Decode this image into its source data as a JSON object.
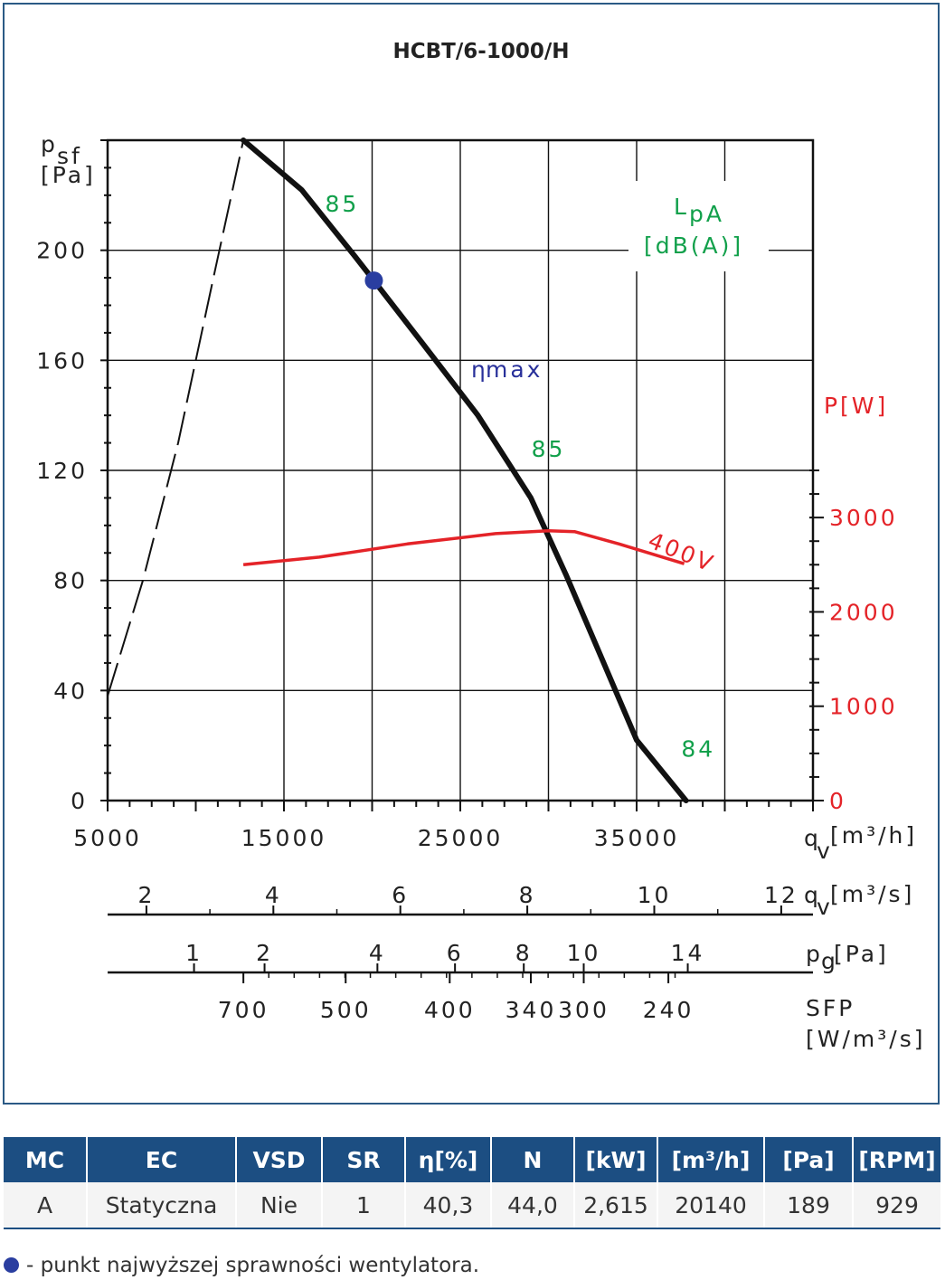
{
  "chart_data": {
    "type": "line",
    "title": "HCBT/6-1000/H",
    "y_axis": {
      "label_main": "p",
      "label_sub": "sf",
      "unit": "[Pa]",
      "range": [
        0,
        240
      ],
      "ticks": [
        "0",
        "40",
        "80",
        "120",
        "160",
        "200"
      ]
    },
    "x_axis": {
      "range": [
        5000,
        45000
      ],
      "unit_main": "q",
      "unit_sub": "v",
      "unit_bracket": "[m³/h]",
      "ticks": [
        "5000",
        "15000",
        "25000",
        "35000"
      ]
    },
    "secondary_axes": [
      {
        "name": "qv_m3s",
        "unit_main": "q",
        "unit_sub": "v",
        "unit_bracket": "[m³/s]",
        "ticks": [
          {
            "label": "2",
            "x": 7200
          },
          {
            "label": "4",
            "x": 14400
          },
          {
            "label": "6",
            "x": 21600
          },
          {
            "label": "8",
            "x": 28800
          },
          {
            "label": "10",
            "x": 36000
          },
          {
            "label": "12",
            "x": 43200
          }
        ]
      },
      {
        "name": "pg",
        "unit_main": "p",
        "unit_sub": "g",
        "unit_bracket": "[Pa]",
        "ticks": [
          {
            "label": "1",
            "x": 9900
          },
          {
            "label": "2",
            "x": 13900
          },
          {
            "label": "4",
            "x": 20300
          },
          {
            "label": "6",
            "x": 24700
          },
          {
            "label": "8",
            "x": 28600
          },
          {
            "label": "10",
            "x": 32000
          },
          {
            "label": "14",
            "x": 37900
          }
        ]
      },
      {
        "name": "sfp",
        "unit_main": "SFP",
        "unit_bracket": "[W/m³/s]",
        "ticks": [
          {
            "label": "700",
            "x": 12700
          },
          {
            "label": "500",
            "x": 18500
          },
          {
            "label": "400",
            "x": 24400
          },
          {
            "label": "340",
            "x": 29000
          },
          {
            "label": "300",
            "x": 32000
          },
          {
            "label": "240",
            "x": 36800
          }
        ]
      }
    ],
    "power_axis": {
      "label_main": "P",
      "label_bracket": "[W]",
      "range": [
        0,
        3500
      ],
      "ticks": [
        "0",
        "1000",
        "2000",
        "3000"
      ]
    },
    "series": [
      {
        "role": "fan-curve",
        "x": [
          12700,
          16000,
          19000,
          20100,
          23000,
          26000,
          29000,
          31000,
          33000,
          35000,
          37800
        ],
        "y": [
          240,
          222,
          198,
          189,
          165,
          140,
          110,
          82,
          52,
          22,
          0
        ]
      },
      {
        "role": "system-curve",
        "x": [
          5000,
          7000,
          9000,
          11000,
          12700
        ],
        "y": [
          38,
          80,
          130,
          190,
          240
        ]
      },
      {
        "name": "400V",
        "x": [
          12700,
          17000,
          22000,
          27000,
          30000,
          31500,
          34000,
          37700
        ],
        "p": [
          2500,
          2580,
          2720,
          2830,
          2860,
          2850,
          2720,
          2510
        ]
      }
    ],
    "annotations": {
      "noise_title": "L",
      "noise_sub": "pA",
      "noise_unit": "[dB(A)]",
      "eta_main": "η",
      "eta_sub": "max",
      "noise_points": [
        {
          "label": "85",
          "x": 18300,
          "y": 214
        },
        {
          "label": "85",
          "x": 30000,
          "y": 125
        },
        {
          "label": "84",
          "x": 38500,
          "y": 16
        }
      ],
      "efficiency_point": {
        "x": 20100,
        "y": 189
      }
    },
    "colors": {
      "fan_curve": "#111111",
      "power": "#e42328",
      "noise": "#12a04b",
      "efficiency": "#2a3ea0",
      "header": "#1c4e82"
    },
    "grid": true
  },
  "table": {
    "headers": [
      "MC",
      "EC",
      "VSD",
      "SR",
      "η[%]",
      "N",
      "[kW]",
      "[m³/h]",
      "[Pa]",
      "[RPM]"
    ],
    "row": [
      "A",
      "Statyczna",
      "Nie",
      "1",
      "40,3",
      "44,0",
      "2,615",
      "20140",
      "189",
      "929"
    ]
  },
  "footnote": "- punkt najwyższej sprawności wentylatora."
}
